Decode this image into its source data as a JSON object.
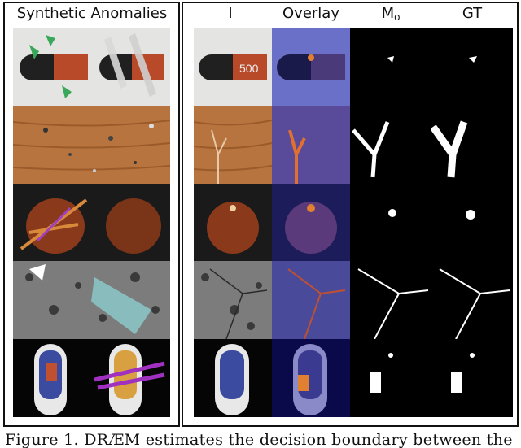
{
  "headers": {
    "synthetic": "Synthetic Anomalies",
    "input": "I",
    "overlay": "Overlay",
    "mask": "M",
    "mask_sub": "o",
    "gt": "GT"
  },
  "pill_label": "500",
  "caption": "Figure 1. DRÆM estimates the decision boundary between the",
  "colors": {
    "frame": "#111111",
    "overlay_tint": "#2a2f9a",
    "mask_bg": "#000000",
    "mask_fg": "#ffffff",
    "wood": "#b8743e",
    "tile": "#7c7c7c",
    "hazelnut": "#8a3a1a",
    "capsule_red": "#b84a2a",
    "toothbrush_bg": "#050505"
  },
  "rows": [
    "capsule",
    "wood",
    "hazelnut",
    "tile",
    "toothbrush"
  ]
}
